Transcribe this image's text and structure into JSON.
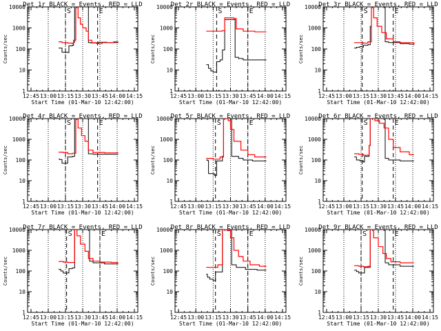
{
  "chart_data": {
    "type": "line",
    "ylabel": "Counts/sec",
    "xlabel": "Start Time (01-Mar-10 12:42:00)",
    "x_ticks": [
      "12:45",
      "13:00",
      "13:15",
      "13:30",
      "13:45",
      "14:00",
      "14:15"
    ],
    "y_ticks": [
      "1",
      "10",
      "100",
      "1000",
      "10000"
    ],
    "ylim": [
      1,
      10000
    ],
    "yscale": "log",
    "colors": {
      "events": "#000000",
      "lld": "#ff0000"
    },
    "panels": [
      {
        "title": "Det 1r BLACK = Events, RED = LLD",
        "markers": [
          {
            "time": "13:15",
            "label": "S"
          },
          {
            "time": "13:43",
            "label": "E"
          }
        ],
        "events": [
          [
            0,
            110
          ],
          [
            2,
            110
          ],
          [
            3,
            70
          ],
          [
            8,
            68
          ],
          [
            9,
            140
          ],
          [
            12,
            150
          ],
          [
            13,
            210
          ],
          [
            14,
            10000
          ],
          [
            25,
            10000
          ],
          [
            26,
            200
          ],
          [
            28,
            195
          ],
          [
            35,
            210
          ],
          [
            42,
            200
          ],
          [
            48,
            200
          ],
          [
            52,
            200
          ]
        ],
        "lld": [
          [
            0,
            220
          ],
          [
            3,
            200
          ],
          [
            8,
            190
          ],
          [
            12,
            180
          ],
          [
            13,
            260
          ],
          [
            15,
            10000
          ],
          [
            17,
            3000
          ],
          [
            19,
            1500
          ],
          [
            21,
            1000
          ],
          [
            24,
            700
          ],
          [
            26,
            260
          ],
          [
            29,
            200
          ],
          [
            33,
            180
          ],
          [
            38,
            200
          ],
          [
            48,
            220
          ],
          [
            52,
            220
          ]
        ]
      },
      {
        "title": "Det 2r BLACK = Events, RED = LLD",
        "markers": [
          {
            "time": "13:18",
            "label": "S"
          },
          {
            "time": "13:45",
            "label": "E"
          }
        ],
        "events": [
          [
            0,
            18
          ],
          [
            2,
            12
          ],
          [
            4,
            9
          ],
          [
            6,
            8
          ],
          [
            8,
            8
          ],
          [
            9,
            25
          ],
          [
            12,
            30
          ],
          [
            14,
            90
          ],
          [
            16,
            2500
          ],
          [
            24,
            2500
          ],
          [
            25,
            40
          ],
          [
            28,
            35
          ],
          [
            32,
            30
          ],
          [
            40,
            30
          ],
          [
            46,
            30
          ],
          [
            50,
            30
          ],
          [
            52,
            30
          ]
        ],
        "lld": [
          [
            0,
            700
          ],
          [
            10,
            700
          ],
          [
            14,
            750
          ],
          [
            16,
            3000
          ],
          [
            24,
            2800
          ],
          [
            26,
            900
          ],
          [
            32,
            700
          ],
          [
            42,
            650
          ],
          [
            52,
            650
          ]
        ]
      },
      {
        "title": "Det 3r BLACK = Events, RED = LLD",
        "markers": [
          {
            "time": "13:16",
            "label": "S"
          },
          {
            "time": "13:43",
            "label": "E"
          }
        ],
        "events": [
          [
            0,
            110
          ],
          [
            2,
            120
          ],
          [
            5,
            130
          ],
          [
            7,
            120
          ],
          [
            8,
            150
          ],
          [
            12,
            160
          ],
          [
            14,
            1200
          ],
          [
            15,
            10000
          ],
          [
            26,
            10000
          ],
          [
            27,
            220
          ],
          [
            30,
            200
          ],
          [
            40,
            180
          ],
          [
            48,
            170
          ],
          [
            52,
            170
          ]
        ],
        "lld": [
          [
            0,
            200
          ],
          [
            8,
            190
          ],
          [
            12,
            220
          ],
          [
            15,
            10000
          ],
          [
            17,
            3000
          ],
          [
            20,
            1200
          ],
          [
            24,
            600
          ],
          [
            28,
            300
          ],
          [
            34,
            220
          ],
          [
            40,
            200
          ],
          [
            52,
            150
          ]
        ]
      },
      {
        "title": "Det 4r BLACK = Events, RED = LLD",
        "markers": [
          {
            "time": "13:15",
            "label": "S"
          },
          {
            "time": "13:43",
            "label": "E"
          }
        ],
        "events": [
          [
            0,
            110
          ],
          [
            1,
            105
          ],
          [
            3,
            70
          ],
          [
            7,
            70
          ],
          [
            8,
            140
          ],
          [
            12,
            150
          ],
          [
            14,
            10000
          ],
          [
            25,
            10000
          ],
          [
            26,
            200
          ],
          [
            30,
            190
          ],
          [
            40,
            190
          ],
          [
            52,
            190
          ]
        ],
        "lld": [
          [
            0,
            240
          ],
          [
            4,
            230
          ],
          [
            8,
            200
          ],
          [
            12,
            210
          ],
          [
            15,
            10000
          ],
          [
            17,
            3500
          ],
          [
            20,
            1500
          ],
          [
            23,
            800
          ],
          [
            26,
            300
          ],
          [
            30,
            230
          ],
          [
            40,
            220
          ],
          [
            52,
            220
          ]
        ]
      },
      {
        "title": "Det 5r BLACK = Events, RED = LLD",
        "markers": [
          {
            "time": "13:17",
            "label": "S"
          },
          {
            "time": "13:45",
            "label": "E"
          }
        ],
        "events": [
          [
            0,
            100
          ],
          [
            1,
            95
          ],
          [
            2,
            22
          ],
          [
            6,
            22
          ],
          [
            7,
            18
          ],
          [
            9,
            90
          ],
          [
            13,
            90
          ],
          [
            14,
            150
          ],
          [
            15,
            10000
          ],
          [
            21,
            10000
          ],
          [
            22,
            150
          ],
          [
            28,
            120
          ],
          [
            32,
            100
          ],
          [
            40,
            90
          ],
          [
            50,
            90
          ],
          [
            52,
            90
          ]
        ],
        "lld": [
          [
            0,
            120
          ],
          [
            6,
            110
          ],
          [
            12,
            140
          ],
          [
            15,
            10000
          ],
          [
            19,
            8000
          ],
          [
            21,
            3000
          ],
          [
            24,
            800
          ],
          [
            30,
            300
          ],
          [
            36,
            180
          ],
          [
            42,
            140
          ],
          [
            52,
            140
          ]
        ]
      },
      {
        "title": "Det 6r BLACK = Events, RED = LLD",
        "markers": [
          {
            "time": "13:16",
            "label": "S"
          },
          {
            "time": "13:43",
            "label": "E"
          }
        ],
        "events": [
          [
            0,
            140
          ],
          [
            2,
            100
          ],
          [
            5,
            90
          ],
          [
            8,
            80
          ],
          [
            9,
            150
          ],
          [
            12,
            150
          ],
          [
            13,
            500
          ],
          [
            14,
            10000
          ],
          [
            26,
            10000
          ],
          [
            27,
            120
          ],
          [
            30,
            100
          ],
          [
            40,
            90
          ],
          [
            52,
            90
          ]
        ],
        "lld": [
          [
            0,
            200
          ],
          [
            4,
            190
          ],
          [
            8,
            170
          ],
          [
            13,
            500
          ],
          [
            14,
            10000
          ],
          [
            18,
            8000
          ],
          [
            22,
            6000
          ],
          [
            26,
            3500
          ],
          [
            30,
            1000
          ],
          [
            34,
            400
          ],
          [
            40,
            250
          ],
          [
            48,
            180
          ],
          [
            52,
            180
          ]
        ]
      },
      {
        "title": "Det 7r BLACK = Events, RED = LLD",
        "markers": [
          {
            "time": "13:16",
            "label": "S"
          },
          {
            "time": "13:45",
            "label": "E"
          }
        ],
        "events": [
          [
            0,
            120
          ],
          [
            2,
            100
          ],
          [
            4,
            80
          ],
          [
            8,
            80
          ],
          [
            9,
            130
          ],
          [
            12,
            140
          ],
          [
            14,
            10000
          ],
          [
            26,
            10000
          ],
          [
            27,
            300
          ],
          [
            30,
            250
          ],
          [
            40,
            220
          ],
          [
            52,
            220
          ]
        ],
        "lld": [
          [
            0,
            290
          ],
          [
            4,
            270
          ],
          [
            8,
            260
          ],
          [
            12,
            260
          ],
          [
            14,
            10000
          ],
          [
            16,
            5000
          ],
          [
            19,
            2000
          ],
          [
            23,
            900
          ],
          [
            26,
            400
          ],
          [
            30,
            300
          ],
          [
            36,
            270
          ],
          [
            46,
            260
          ],
          [
            52,
            260
          ]
        ]
      },
      {
        "title": "Det 8r BLACK = Events, RED = LLD",
        "markers": [
          {
            "time": "13:17",
            "label": "S"
          },
          {
            "time": "13:45",
            "label": "E"
          }
        ],
        "events": [
          [
            0,
            70
          ],
          [
            1,
            50
          ],
          [
            3,
            40
          ],
          [
            5,
            40
          ],
          [
            6,
            35
          ],
          [
            8,
            90
          ],
          [
            12,
            90
          ],
          [
            14,
            10000
          ],
          [
            21,
            10000
          ],
          [
            22,
            200
          ],
          [
            26,
            150
          ],
          [
            34,
            120
          ],
          [
            44,
            110
          ],
          [
            52,
            110
          ]
        ],
        "lld": [
          [
            0,
            150
          ],
          [
            6,
            150
          ],
          [
            10,
            200
          ],
          [
            14,
            10000
          ],
          [
            18,
            9000
          ],
          [
            21,
            4000
          ],
          [
            24,
            1000
          ],
          [
            28,
            500
          ],
          [
            32,
            300
          ],
          [
            38,
            200
          ],
          [
            46,
            170
          ],
          [
            52,
            170
          ]
        ]
      },
      {
        "title": "Det 9r BLACK = Events, RED = LLD",
        "markers": [
          {
            "time": "13:15",
            "label": "S"
          },
          {
            "time": "13:43",
            "label": "E"
          }
        ],
        "events": [
          [
            0,
            110
          ],
          [
            2,
            95
          ],
          [
            4,
            80
          ],
          [
            8,
            80
          ],
          [
            9,
            150
          ],
          [
            12,
            150
          ],
          [
            14,
            10000
          ],
          [
            26,
            10000
          ],
          [
            27,
            250
          ],
          [
            30,
            200
          ],
          [
            40,
            170
          ],
          [
            52,
            170
          ]
        ],
        "lld": [
          [
            0,
            180
          ],
          [
            4,
            170
          ],
          [
            8,
            160
          ],
          [
            12,
            170
          ],
          [
            14,
            10000
          ],
          [
            17,
            4000
          ],
          [
            21,
            1500
          ],
          [
            25,
            700
          ],
          [
            28,
            400
          ],
          [
            32,
            280
          ],
          [
            40,
            250
          ],
          [
            52,
            250
          ]
        ]
      }
    ]
  }
}
